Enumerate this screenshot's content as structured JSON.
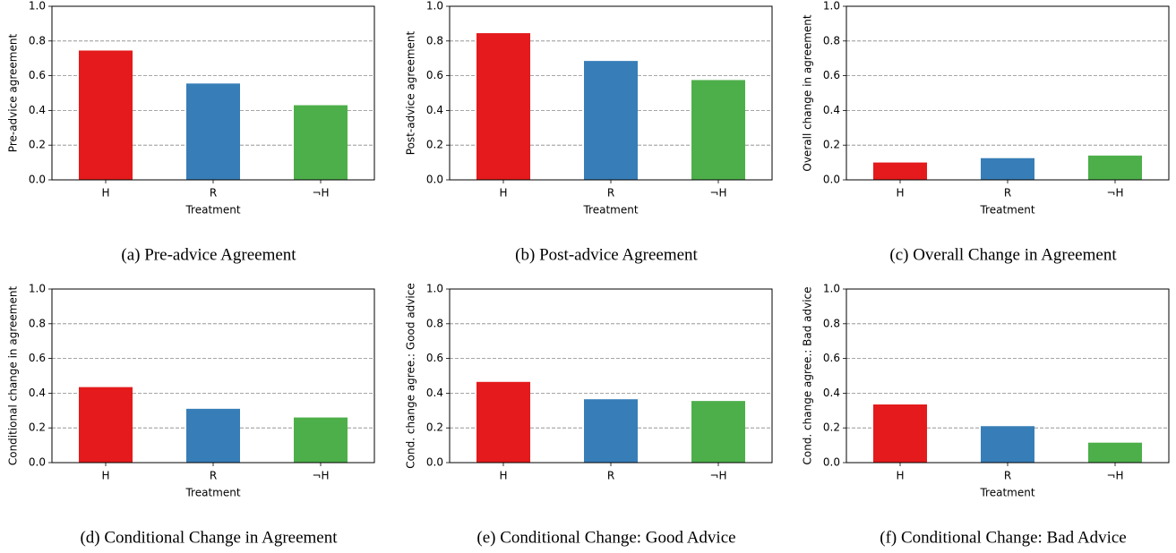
{
  "chart_data": [
    {
      "type": "bar",
      "caption": "(a) Pre-advice Agreement",
      "ylabel": "Pre-advice agreement",
      "xlabel": "Treatment",
      "categories": [
        "H",
        "R",
        "¬H"
      ],
      "values": [
        0.745,
        0.555,
        0.43
      ],
      "colors": [
        "#e41a1c",
        "#377eb8",
        "#4daf4a"
      ],
      "ylim": [
        0,
        1
      ],
      "yticks": [
        {
          "value": 0,
          "label": "0.0"
        },
        0.2,
        0.4,
        0.6,
        0.8,
        {
          "value": 1,
          "label": "1.0"
        }
      ],
      "grid": true
    },
    {
      "type": "bar",
      "caption": "(b) Post-advice Agreement",
      "ylabel": "Post-advice agreement",
      "xlabel": "Treatment",
      "categories": [
        "H",
        "R",
        "¬H"
      ],
      "values": [
        0.845,
        0.685,
        0.575
      ],
      "colors": [
        "#e41a1c",
        "#377eb8",
        "#4daf4a"
      ],
      "ylim": [
        0,
        1
      ],
      "yticks": [
        {
          "value": 0,
          "label": "0.0"
        },
        0.2,
        0.4,
        0.6,
        0.8,
        {
          "value": 1,
          "label": "1.0"
        }
      ],
      "grid": true
    },
    {
      "type": "bar",
      "caption": "(c) Overall Change in Agreement",
      "ylabel": "Overall change in agreement",
      "xlabel": "Treatment",
      "categories": [
        "H",
        "R",
        "¬H"
      ],
      "values": [
        0.1,
        0.125,
        0.14
      ],
      "colors": [
        "#e41a1c",
        "#377eb8",
        "#4daf4a"
      ],
      "ylim": [
        0,
        1
      ],
      "yticks": [
        {
          "value": 0,
          "label": "0.0"
        },
        0.2,
        0.4,
        0.6,
        0.8,
        {
          "value": 1,
          "label": "1.0"
        }
      ],
      "grid": true
    },
    {
      "type": "bar",
      "caption": "(d) Conditional Change in Agreement",
      "ylabel": "Conditional change in agreement",
      "xlabel": "Treatment",
      "categories": [
        "H",
        "R",
        "¬H"
      ],
      "values": [
        0.435,
        0.31,
        0.26
      ],
      "colors": [
        "#e41a1c",
        "#377eb8",
        "#4daf4a"
      ],
      "ylim": [
        0,
        1
      ],
      "yticks": [
        {
          "value": 0,
          "label": "0.0"
        },
        0.2,
        0.4,
        0.6,
        0.8,
        {
          "value": 1,
          "label": "1.0"
        }
      ],
      "grid": true
    },
    {
      "type": "bar",
      "caption": "(e) Conditional Change: Good Advice",
      "ylabel": "Cond. change agree.: Good advice",
      "categories": [
        "H",
        "R",
        "¬H"
      ],
      "values": [
        0.465,
        0.365,
        0.355
      ],
      "colors": [
        "#e41a1c",
        "#377eb8",
        "#4daf4a"
      ],
      "ylim": [
        0,
        1
      ],
      "yticks": [
        {
          "value": 0,
          "label": "0.0"
        },
        0.2,
        0.4,
        0.6,
        0.8,
        {
          "value": 1,
          "label": "1.0"
        }
      ],
      "grid": true
    },
    {
      "type": "bar",
      "caption": "(f) Conditional Change: Bad Advice",
      "ylabel": "Cond. change agree.: Bad advice",
      "xlabel": "Treatment",
      "categories": [
        "H",
        "R",
        "¬H"
      ],
      "values": [
        0.335,
        0.21,
        0.115
      ],
      "colors": [
        "#e41a1c",
        "#377eb8",
        "#4daf4a"
      ],
      "ylim": [
        0,
        1
      ],
      "yticks": [
        {
          "value": 0,
          "label": "0.0"
        },
        0.2,
        0.4,
        0.6,
        0.8,
        {
          "value": 1,
          "label": "1.0"
        }
      ],
      "grid": true
    }
  ]
}
